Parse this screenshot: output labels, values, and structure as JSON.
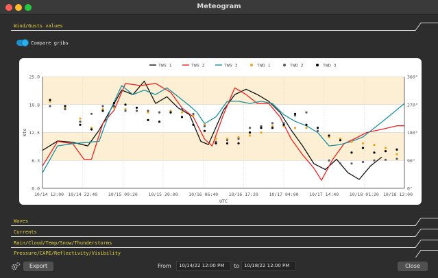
{
  "window": {
    "title": "Meteogram"
  },
  "sections": {
    "wind": "Wind/Gusts values",
    "waves": "Waves",
    "currents": "Currents",
    "rain": "Rain/Cloud/Temp/Snow/Thunderstorms",
    "pressure": "Pressure/CAPE/Reflectivity/Visibility"
  },
  "compare": {
    "label": "Compare gribs",
    "enabled": true
  },
  "footer": {
    "export_label": "Export",
    "from_label": "From",
    "from_value": "10/14/22 12:00 PM",
    "to_label": "to",
    "to_value": "10/18/22 12:00 PM",
    "close_label": "Close"
  },
  "colors": {
    "tws1": "#111111",
    "tws2": "#ee2222",
    "tws3": "#1a8fa0",
    "twd1": "#f0a418",
    "twd2": "#555a66",
    "twd3": "#000000",
    "band": "#fdefd3"
  },
  "chart_data": {
    "type": "line",
    "xlabel": "UTC",
    "ylabel": "kts",
    "y_left": {
      "min": 0,
      "max": 25,
      "ticks": [
        "0.0",
        "6.3",
        "12.5",
        "18.8",
        "25.0"
      ]
    },
    "y_right": {
      "min": 0,
      "max": 360,
      "ticks": [
        "0°",
        "90°",
        "180°",
        "270°",
        "360°"
      ]
    },
    "x_range": [
      0,
      96
    ],
    "x_ticks": [
      {
        "h": 0,
        "label": "10/14 12:00"
      },
      {
        "h": 10.67,
        "label": "10/14 22:40"
      },
      {
        "h": 21.33,
        "label": "10/15 09:20"
      },
      {
        "h": 32,
        "label": "10/15 20:00"
      },
      {
        "h": 42.67,
        "label": "10/16 06:40"
      },
      {
        "h": 53.33,
        "label": "10/16 17:20"
      },
      {
        "h": 64,
        "label": "10/17 04:00"
      },
      {
        "h": 74.67,
        "label": "10/17 14:40"
      },
      {
        "h": 85.33,
        "label": "10/18 01:20"
      },
      {
        "h": 96,
        "label": "10/18 12:00"
      }
    ],
    "legend": [
      "TWS 1",
      "TWS 2",
      "TWS 3",
      "TWD 1",
      "TWD 2",
      "TWD 3"
    ],
    "series": [
      {
        "name": "TWS 1",
        "kind": "line",
        "color": "#111111",
        "x": [
          0,
          4,
          8,
          12,
          15,
          18,
          21,
          24,
          27,
          30,
          33,
          36,
          39,
          42,
          44,
          48,
          51,
          54,
          57,
          60,
          63,
          66,
          69,
          72,
          75,
          78,
          81,
          84,
          87,
          90
        ],
        "y": [
          8.5,
          10.6,
          10.3,
          9.5,
          13,
          17.5,
          22,
          21,
          24,
          19,
          20.5,
          18,
          16.5,
          10.5,
          9.8,
          17.5,
          21,
          22.2,
          21,
          19.5,
          17,
          13,
          9.5,
          5.5,
          4.2,
          6.5,
          3.5,
          2,
          5,
          7
        ]
      },
      {
        "name": "TWS 2",
        "kind": "line",
        "color": "#ee2222",
        "x": [
          0,
          4,
          8,
          11,
          13,
          16,
          19,
          22,
          26,
          30,
          34,
          37,
          40,
          43,
          45,
          48,
          51,
          54,
          57,
          60,
          63,
          66,
          69,
          72,
          74,
          77,
          80,
          83,
          86,
          90,
          94,
          96
        ],
        "y": [
          5,
          10.5,
          10,
          6.5,
          6.5,
          14.5,
          17.5,
          23.5,
          23,
          23.5,
          21.5,
          18,
          16,
          11,
          9.5,
          16.5,
          22.5,
          21,
          19,
          19,
          16,
          11,
          7.5,
          4.5,
          1.8,
          6.5,
          10,
          11.2,
          12.5,
          13.2,
          14,
          14
        ]
      },
      {
        "name": "TWS 3",
        "kind": "line",
        "color": "#1a8fa0",
        "x": [
          0,
          4,
          8,
          12,
          15,
          18,
          21,
          24,
          27,
          30,
          33,
          36,
          39,
          41,
          43,
          46,
          49,
          52,
          55,
          58,
          61,
          64,
          67,
          70,
          73,
          76,
          79,
          82,
          85,
          88,
          91,
          96
        ],
        "y": [
          3.5,
          9.5,
          10,
          10.3,
          10.5,
          17.5,
          23,
          21,
          22,
          21,
          22.5,
          20.5,
          18.5,
          17,
          14.5,
          16,
          19.5,
          19.5,
          19,
          19.5,
          19,
          16.5,
          15,
          14,
          12.5,
          9.5,
          9.8,
          10.5,
          11.5,
          13.5,
          15.5,
          19
        ]
      },
      {
        "name": "TWD 1",
        "kind": "scatter",
        "color": "#f0a418",
        "x": [
          2,
          6,
          10,
          13,
          16,
          19,
          22,
          25,
          28,
          31,
          34,
          37,
          40,
          43,
          46,
          49,
          52,
          55,
          58,
          61,
          64,
          67,
          70,
          73,
          76,
          79,
          82,
          85,
          88,
          91,
          94
        ],
        "y": [
          280,
          260,
          225,
          195,
          255,
          260,
          255,
          250,
          245,
          245,
          250,
          245,
          235,
          205,
          160,
          160,
          165,
          170,
          180,
          200,
          200,
          195,
          195,
          185,
          165,
          160,
          150,
          145,
          140,
          130,
          110
        ]
      },
      {
        "name": "TWD 2",
        "kind": "scatter",
        "color": "#555a66",
        "x": [
          2,
          6,
          10,
          13,
          16,
          19,
          22,
          25,
          28,
          31,
          34,
          37,
          40,
          43,
          46,
          49,
          52,
          55,
          58,
          61,
          64,
          67,
          70,
          73,
          76,
          79,
          82,
          85,
          88,
          91,
          94
        ],
        "y": [
          265,
          255,
          215,
          240,
          265,
          265,
          250,
          250,
          250,
          245,
          245,
          255,
          240,
          200,
          150,
          155,
          160,
          195,
          200,
          210,
          210,
          235,
          245,
          185,
          90,
          80,
          80,
          85,
          90,
          92,
          95
        ]
      },
      {
        "name": "TWD 3",
        "kind": "scatter",
        "color": "#000000",
        "x": [
          2,
          6,
          10,
          13,
          16,
          19,
          22,
          25,
          28,
          31,
          34,
          37,
          40,
          43,
          46,
          49,
          52,
          55,
          58,
          61,
          64,
          67,
          70,
          73,
          76,
          79,
          82,
          85,
          88,
          91,
          94
        ],
        "y": [
          285,
          265,
          205,
          190,
          250,
          275,
          270,
          260,
          220,
          215,
          245,
          230,
          205,
          185,
          145,
          145,
          145,
          180,
          195,
          195,
          205,
          240,
          205,
          195,
          170,
          155,
          115,
          130,
          115,
          120,
          125
        ]
      }
    ]
  }
}
